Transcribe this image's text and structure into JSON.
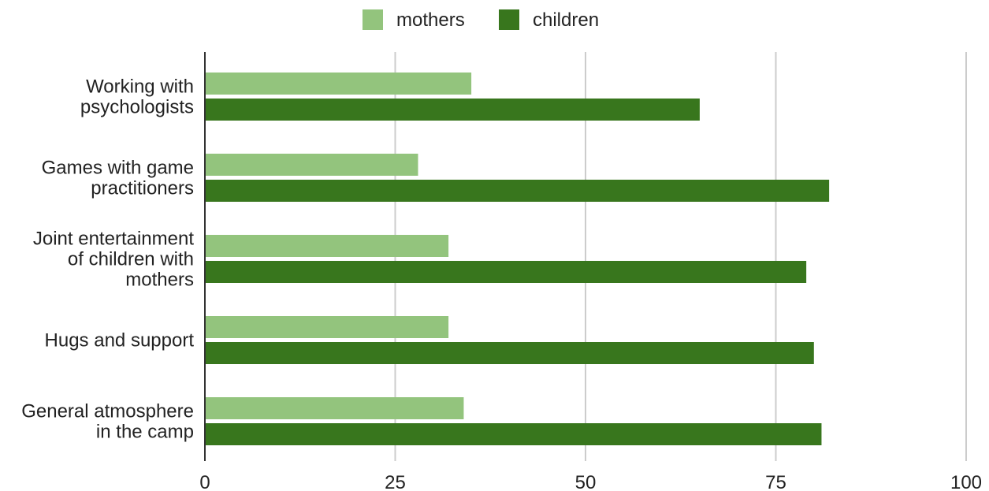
{
  "chart_data": {
    "type": "bar",
    "orientation": "horizontal",
    "categories": [
      [
        "Working with",
        "psychologists"
      ],
      [
        "Games with game",
        "practitioners"
      ],
      [
        "Joint entertainment",
        "of children with",
        "mothers"
      ],
      [
        "Hugs and support"
      ],
      [
        "General atmosphere",
        "in the camp"
      ]
    ],
    "series": [
      {
        "name": "mothers",
        "color": "#93c47d",
        "values": [
          35,
          28,
          32,
          32,
          34
        ]
      },
      {
        "name": "children",
        "color": "#38761d",
        "values": [
          65,
          82,
          79,
          80,
          81
        ]
      }
    ],
    "xlim": [
      0,
      100
    ],
    "xticks": [
      0,
      25,
      50,
      75,
      100
    ],
    "grid": "vertical",
    "legend_position": "top",
    "title": "",
    "xlabel": "",
    "ylabel": ""
  }
}
